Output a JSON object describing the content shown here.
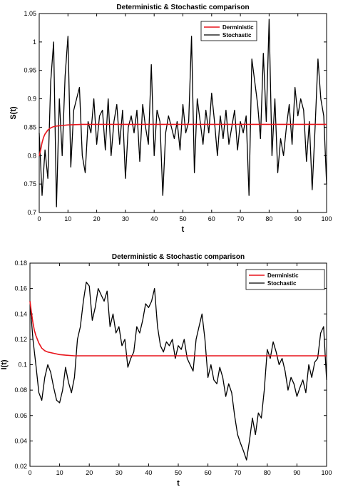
{
  "chart_data": [
    {
      "type": "line",
      "title": "Deterministic & Stochastic comparison",
      "xlabel": "t",
      "ylabel": "S(t)",
      "xlim": [
        0,
        100
      ],
      "ylim": [
        0.7,
        1.05
      ],
      "xticks": [
        0,
        10,
        20,
        30,
        40,
        50,
        60,
        70,
        80,
        90,
        100
      ],
      "yticks": [
        0.7,
        0.75,
        0.8,
        0.85,
        0.9,
        0.95,
        1,
        1.05
      ],
      "ytick_labels": [
        "0.7",
        "0.75",
        "0.8",
        "0.85",
        "0.9",
        "0.95",
        "1",
        "1.05"
      ],
      "legend_position": "top-right",
      "grid": false,
      "series": [
        {
          "name": "Derministic",
          "color": "#e8141b",
          "x": [
            0,
            0.5,
            1,
            1.5,
            2,
            3,
            4,
            5,
            6,
            8,
            10,
            15,
            20,
            30,
            40,
            50,
            60,
            70,
            80,
            90,
            100
          ],
          "y": [
            0.8,
            0.81,
            0.823,
            0.832,
            0.838,
            0.845,
            0.849,
            0.851,
            0.852,
            0.853,
            0.854,
            0.855,
            0.855,
            0.855,
            0.855,
            0.855,
            0.855,
            0.855,
            0.855,
            0.855,
            0.855
          ]
        },
        {
          "name": "Stochastic",
          "color": "#000000",
          "x": [
            0,
            1,
            2,
            3,
            4,
            5,
            6,
            7,
            8,
            9,
            10,
            11,
            12,
            13,
            14,
            15,
            16,
            17,
            18,
            19,
            20,
            21,
            22,
            23,
            24,
            25,
            26,
            27,
            28,
            29,
            30,
            31,
            32,
            33,
            34,
            35,
            36,
            37,
            38,
            39,
            40,
            41,
            42,
            43,
            44,
            45,
            46,
            47,
            48,
            49,
            50,
            51,
            52,
            53,
            54,
            55,
            56,
            57,
            58,
            59,
            60,
            61,
            62,
            63,
            64,
            65,
            66,
            67,
            68,
            69,
            70,
            71,
            72,
            73,
            74,
            75,
            76,
            77,
            78,
            79,
            80,
            81,
            82,
            83,
            84,
            85,
            86,
            87,
            88,
            89,
            90,
            91,
            92,
            93,
            94,
            95,
            96,
            97,
            98,
            99,
            100
          ],
          "y": [
            0.84,
            0.73,
            0.81,
            0.76,
            0.93,
            1.0,
            0.71,
            0.9,
            0.8,
            0.94,
            1.01,
            0.78,
            0.88,
            0.9,
            0.92,
            0.8,
            0.77,
            0.86,
            0.84,
            0.9,
            0.82,
            0.87,
            0.88,
            0.81,
            0.9,
            0.8,
            0.86,
            0.89,
            0.82,
            0.88,
            0.76,
            0.85,
            0.87,
            0.84,
            0.88,
            0.79,
            0.89,
            0.85,
            0.82,
            0.96,
            0.8,
            0.88,
            0.86,
            0.73,
            0.84,
            0.87,
            0.85,
            0.83,
            0.86,
            0.81,
            0.89,
            0.84,
            0.86,
            1.01,
            0.77,
            0.9,
            0.86,
            0.82,
            0.88,
            0.84,
            0.91,
            0.86,
            0.8,
            0.87,
            0.83,
            0.88,
            0.82,
            0.85,
            0.88,
            0.81,
            0.86,
            0.84,
            0.87,
            0.73,
            0.97,
            0.93,
            0.89,
            0.83,
            0.98,
            0.86,
            1.04,
            0.8,
            0.9,
            0.77,
            0.83,
            0.8,
            0.85,
            0.89,
            0.82,
            0.92,
            0.87,
            0.9,
            0.88,
            0.79,
            0.86,
            0.74,
            0.85,
            0.97,
            0.9,
            0.87,
            0.75
          ]
        }
      ]
    },
    {
      "type": "line",
      "title": "Deterministic & Stochastic comparison",
      "xlabel": "t",
      "ylabel": "I(t)",
      "xlim": [
        0,
        100
      ],
      "ylim": [
        0.02,
        0.18
      ],
      "xticks": [
        0,
        10,
        20,
        30,
        40,
        50,
        60,
        70,
        80,
        90,
        100
      ],
      "yticks": [
        0.02,
        0.04,
        0.06,
        0.08,
        0.1,
        0.12,
        0.14,
        0.16,
        0.18
      ],
      "ytick_labels": [
        "0.02",
        "0.04",
        "0.06",
        "0.08",
        "0.1",
        "0.12",
        "0.14",
        "0.16",
        "0.18"
      ],
      "legend_position": "top-right",
      "grid": false,
      "series": [
        {
          "name": "Derministic",
          "color": "#e8141b",
          "x": [
            0,
            0.5,
            1,
            1.5,
            2,
            3,
            4,
            5,
            6,
            8,
            10,
            12,
            15,
            20,
            30,
            40,
            50,
            60,
            70,
            80,
            90,
            100
          ],
          "y": [
            0.15,
            0.141,
            0.133,
            0.127,
            0.123,
            0.117,
            0.113,
            0.111,
            0.11,
            0.109,
            0.108,
            0.1075,
            0.107,
            0.107,
            0.107,
            0.107,
            0.107,
            0.107,
            0.107,
            0.107,
            0.107,
            0.107
          ]
        },
        {
          "name": "Stochastic",
          "color": "#000000",
          "x": [
            0,
            1,
            2,
            3,
            4,
            5,
            6,
            7,
            8,
            9,
            10,
            11,
            12,
            13,
            14,
            15,
            16,
            17,
            18,
            19,
            20,
            21,
            22,
            23,
            24,
            25,
            26,
            27,
            28,
            29,
            30,
            31,
            32,
            33,
            34,
            35,
            36,
            37,
            38,
            39,
            40,
            41,
            42,
            43,
            44,
            45,
            46,
            47,
            48,
            49,
            50,
            51,
            52,
            53,
            54,
            55,
            56,
            57,
            58,
            59,
            60,
            61,
            62,
            63,
            64,
            65,
            66,
            67,
            68,
            69,
            70,
            71,
            72,
            73,
            74,
            75,
            76,
            77,
            78,
            79,
            80,
            81,
            82,
            83,
            84,
            85,
            86,
            87,
            88,
            89,
            90,
            91,
            92,
            93,
            94,
            95,
            96,
            97,
            98,
            99,
            100
          ],
          "y": [
            0.15,
            0.12,
            0.1,
            0.078,
            0.072,
            0.09,
            0.1,
            0.094,
            0.082,
            0.072,
            0.07,
            0.08,
            0.098,
            0.086,
            0.078,
            0.09,
            0.12,
            0.13,
            0.15,
            0.165,
            0.162,
            0.135,
            0.145,
            0.16,
            0.155,
            0.15,
            0.158,
            0.13,
            0.14,
            0.125,
            0.13,
            0.115,
            0.12,
            0.098,
            0.105,
            0.11,
            0.13,
            0.125,
            0.135,
            0.148,
            0.145,
            0.15,
            0.16,
            0.13,
            0.115,
            0.11,
            0.118,
            0.115,
            0.12,
            0.105,
            0.115,
            0.112,
            0.12,
            0.105,
            0.1,
            0.095,
            0.12,
            0.13,
            0.14,
            0.12,
            0.09,
            0.1,
            0.088,
            0.085,
            0.098,
            0.09,
            0.075,
            0.085,
            0.078,
            0.06,
            0.045,
            0.038,
            0.032,
            0.025,
            0.04,
            0.058,
            0.045,
            0.062,
            0.058,
            0.08,
            0.112,
            0.105,
            0.118,
            0.11,
            0.1,
            0.105,
            0.095,
            0.08,
            0.09,
            0.085,
            0.075,
            0.082,
            0.088,
            0.078,
            0.1,
            0.09,
            0.102,
            0.105,
            0.125,
            0.13,
            0.088
          ]
        }
      ]
    }
  ]
}
